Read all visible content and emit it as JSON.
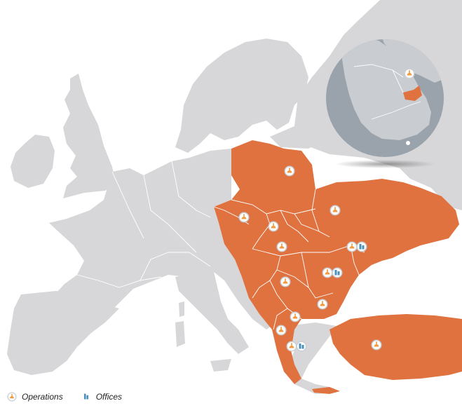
{
  "colors": {
    "sea": "#ffffff",
    "land": "#d7d7d9",
    "highlight": "#e07240",
    "border": "#ffffff",
    "inset_circle": "#9aa3ab",
    "inset_land": "#c9ccd0",
    "inset_highlight": "#e07240",
    "marker_ring": "#c9cfd6",
    "operations_icon": "#f19a3e",
    "offices_icon": "#4a90b8"
  },
  "markers": {
    "operations_icon": "operations-icon",
    "offices_icon": "offices-icon"
  },
  "legend": {
    "operations_label": "Operations",
    "offices_label": "Offices"
  }
}
